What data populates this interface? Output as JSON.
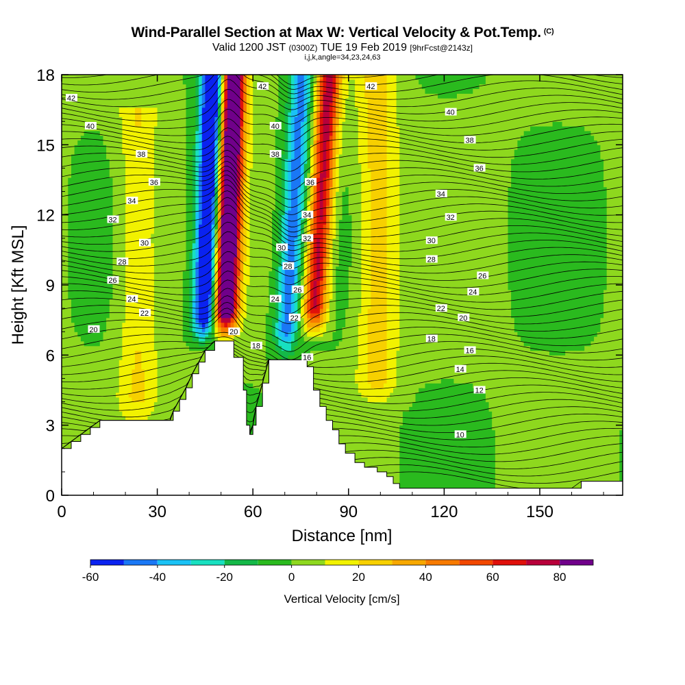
{
  "header": {
    "title": "Wind-Parallel Section at Max W: Vertical Velocity & Pot.Temp.",
    "copyright": "(C)",
    "valid_main": "Valid 1200 JST",
    "valid_utc": "(0300Z)",
    "valid_date": "TUE 19 Feb 2019",
    "valid_fcst": "[9hrFcst@2143z]",
    "subtitle3": "i,j,k,angle=34,23,24,63"
  },
  "chart_data": {
    "type": "heatmap",
    "xlabel": "Distance [nm]",
    "ylabel": "Height [Kft MSL]",
    "xlim": [
      0,
      176
    ],
    "ylim": [
      0,
      18
    ],
    "x_ticks": [
      0,
      30,
      60,
      90,
      120,
      150
    ],
    "y_ticks": [
      0,
      3,
      6,
      9,
      12,
      15,
      18
    ],
    "colorbar": {
      "title": "Vertical Velocity [cm/s]",
      "bins": [
        -60,
        -50,
        -40,
        -30,
        -20,
        -10,
        0,
        10,
        20,
        30,
        40,
        50,
        60,
        70,
        80,
        90
      ],
      "labels": [
        "-60",
        "-40",
        "-20",
        "0",
        "20",
        "40",
        "60",
        "80"
      ],
      "label_values": [
        -60,
        -40,
        -20,
        0,
        20,
        40,
        60,
        80
      ],
      "colors": [
        "#0a22f0",
        "#1a78f5",
        "#1ac2f5",
        "#18e0c0",
        "#14b848",
        "#2aba1e",
        "#8ed81e",
        "#f2f200",
        "#f7d000",
        "#f7a800",
        "#f77a00",
        "#f24800",
        "#e0100a",
        "#b8003a",
        "#70008a"
      ]
    },
    "terrain_kft": [
      [
        0,
        2.0
      ],
      [
        3,
        2.3
      ],
      [
        6,
        2.6
      ],
      [
        9,
        2.9
      ],
      [
        12,
        3.2
      ],
      [
        16,
        3.2
      ],
      [
        22,
        3.2
      ],
      [
        25,
        3.2
      ],
      [
        30,
        3.2
      ],
      [
        34,
        3.2
      ],
      [
        35,
        3.6
      ],
      [
        37,
        4.1
      ],
      [
        39,
        4.6
      ],
      [
        41,
        5.2
      ],
      [
        43,
        5.7
      ],
      [
        45,
        6.2
      ],
      [
        48,
        6.6
      ],
      [
        52,
        6.6
      ],
      [
        54,
        5.9
      ],
      [
        57,
        4.5
      ],
      [
        58,
        3.0
      ],
      [
        59,
        2.6
      ],
      [
        60,
        3.0
      ],
      [
        61,
        3.8
      ],
      [
        63,
        4.8
      ],
      [
        65,
        5.8
      ],
      [
        70,
        5.8
      ],
      [
        73,
        5.8
      ],
      [
        75,
        5.8
      ],
      [
        77,
        5.5
      ],
      [
        79,
        4.5
      ],
      [
        81,
        3.8
      ],
      [
        83,
        3.2
      ],
      [
        85,
        2.8
      ],
      [
        87,
        2.2
      ],
      [
        89,
        1.8
      ],
      [
        92,
        1.4
      ],
      [
        95,
        1.2
      ],
      [
        99,
        1.0
      ],
      [
        102,
        0.8
      ],
      [
        104,
        0.5
      ],
      [
        106,
        0.3
      ],
      [
        110,
        0.3
      ],
      [
        160,
        0.3
      ],
      [
        163,
        0.6
      ],
      [
        176,
        0.6
      ]
    ],
    "velocity_features": [
      {
        "x": 44,
        "y_from": 6.6,
        "y_to": 18,
        "value": -50
      },
      {
        "x": 46,
        "y_from": 7.0,
        "y_to": 17,
        "value": -45
      },
      {
        "x": 50,
        "y_from": 7.0,
        "y_to": 18,
        "value": 70
      },
      {
        "x": 52,
        "y_from": 7.0,
        "y_to": 18,
        "value": 60
      },
      {
        "x": 70,
        "y_from": 6.0,
        "y_to": 17,
        "value": -45
      },
      {
        "x": 79,
        "y_from": 7.0,
        "y_to": 18,
        "value": 75
      },
      {
        "x": 99,
        "y_from": 4.0,
        "y_to": 18,
        "value": 25
      },
      {
        "x": 24,
        "y_from": 3.2,
        "y_to": 15,
        "value": 20
      }
    ],
    "theta_labels": [
      {
        "x": 3,
        "y": 17.0,
        "label": "42"
      },
      {
        "x": 63,
        "y": 17.5,
        "label": "42"
      },
      {
        "x": 97,
        "y": 17.5,
        "label": "42"
      },
      {
        "x": 9,
        "y": 15.8,
        "label": "40"
      },
      {
        "x": 67,
        "y": 15.8,
        "label": "40"
      },
      {
        "x": 122,
        "y": 16.4,
        "label": "40"
      },
      {
        "x": 25,
        "y": 14.6,
        "label": "38"
      },
      {
        "x": 67,
        "y": 14.6,
        "label": "38"
      },
      {
        "x": 128,
        "y": 15.2,
        "label": "38"
      },
      {
        "x": 29,
        "y": 13.4,
        "label": "36"
      },
      {
        "x": 78,
        "y": 13.4,
        "label": "36"
      },
      {
        "x": 131,
        "y": 14.0,
        "label": "36"
      },
      {
        "x": 22,
        "y": 12.6,
        "label": "34"
      },
      {
        "x": 77,
        "y": 12.0,
        "label": "34"
      },
      {
        "x": 119,
        "y": 12.9,
        "label": "34"
      },
      {
        "x": 16,
        "y": 11.8,
        "label": "32"
      },
      {
        "x": 77,
        "y": 11.0,
        "label": "32"
      },
      {
        "x": 122,
        "y": 11.9,
        "label": "32"
      },
      {
        "x": 26,
        "y": 10.8,
        "label": "30"
      },
      {
        "x": 69,
        "y": 10.6,
        "label": "30"
      },
      {
        "x": 116,
        "y": 10.9,
        "label": "30"
      },
      {
        "x": 19,
        "y": 10.0,
        "label": "28"
      },
      {
        "x": 71,
        "y": 9.8,
        "label": "28"
      },
      {
        "x": 116,
        "y": 10.1,
        "label": "28"
      },
      {
        "x": 16,
        "y": 9.2,
        "label": "26"
      },
      {
        "x": 74,
        "y": 8.8,
        "label": "26"
      },
      {
        "x": 132,
        "y": 9.4,
        "label": "26"
      },
      {
        "x": 22,
        "y": 8.4,
        "label": "24"
      },
      {
        "x": 67,
        "y": 8.4,
        "label": "24"
      },
      {
        "x": 129,
        "y": 8.7,
        "label": "24"
      },
      {
        "x": 26,
        "y": 7.8,
        "label": "22"
      },
      {
        "x": 73,
        "y": 7.6,
        "label": "22"
      },
      {
        "x": 119,
        "y": 8.0,
        "label": "22"
      },
      {
        "x": 10,
        "y": 7.1,
        "label": "20"
      },
      {
        "x": 54,
        "y": 7.0,
        "label": "20"
      },
      {
        "x": 126,
        "y": 7.6,
        "label": "20"
      },
      {
        "x": 61,
        "y": 6.4,
        "label": "18"
      },
      {
        "x": 116,
        "y": 6.7,
        "label": "18"
      },
      {
        "x": 77,
        "y": 5.9,
        "label": "16"
      },
      {
        "x": 128,
        "y": 6.2,
        "label": "16"
      },
      {
        "x": 125,
        "y": 5.4,
        "label": "14"
      },
      {
        "x": 131,
        "y": 4.5,
        "label": "12"
      },
      {
        "x": 125,
        "y": 2.6,
        "label": "10"
      }
    ]
  }
}
